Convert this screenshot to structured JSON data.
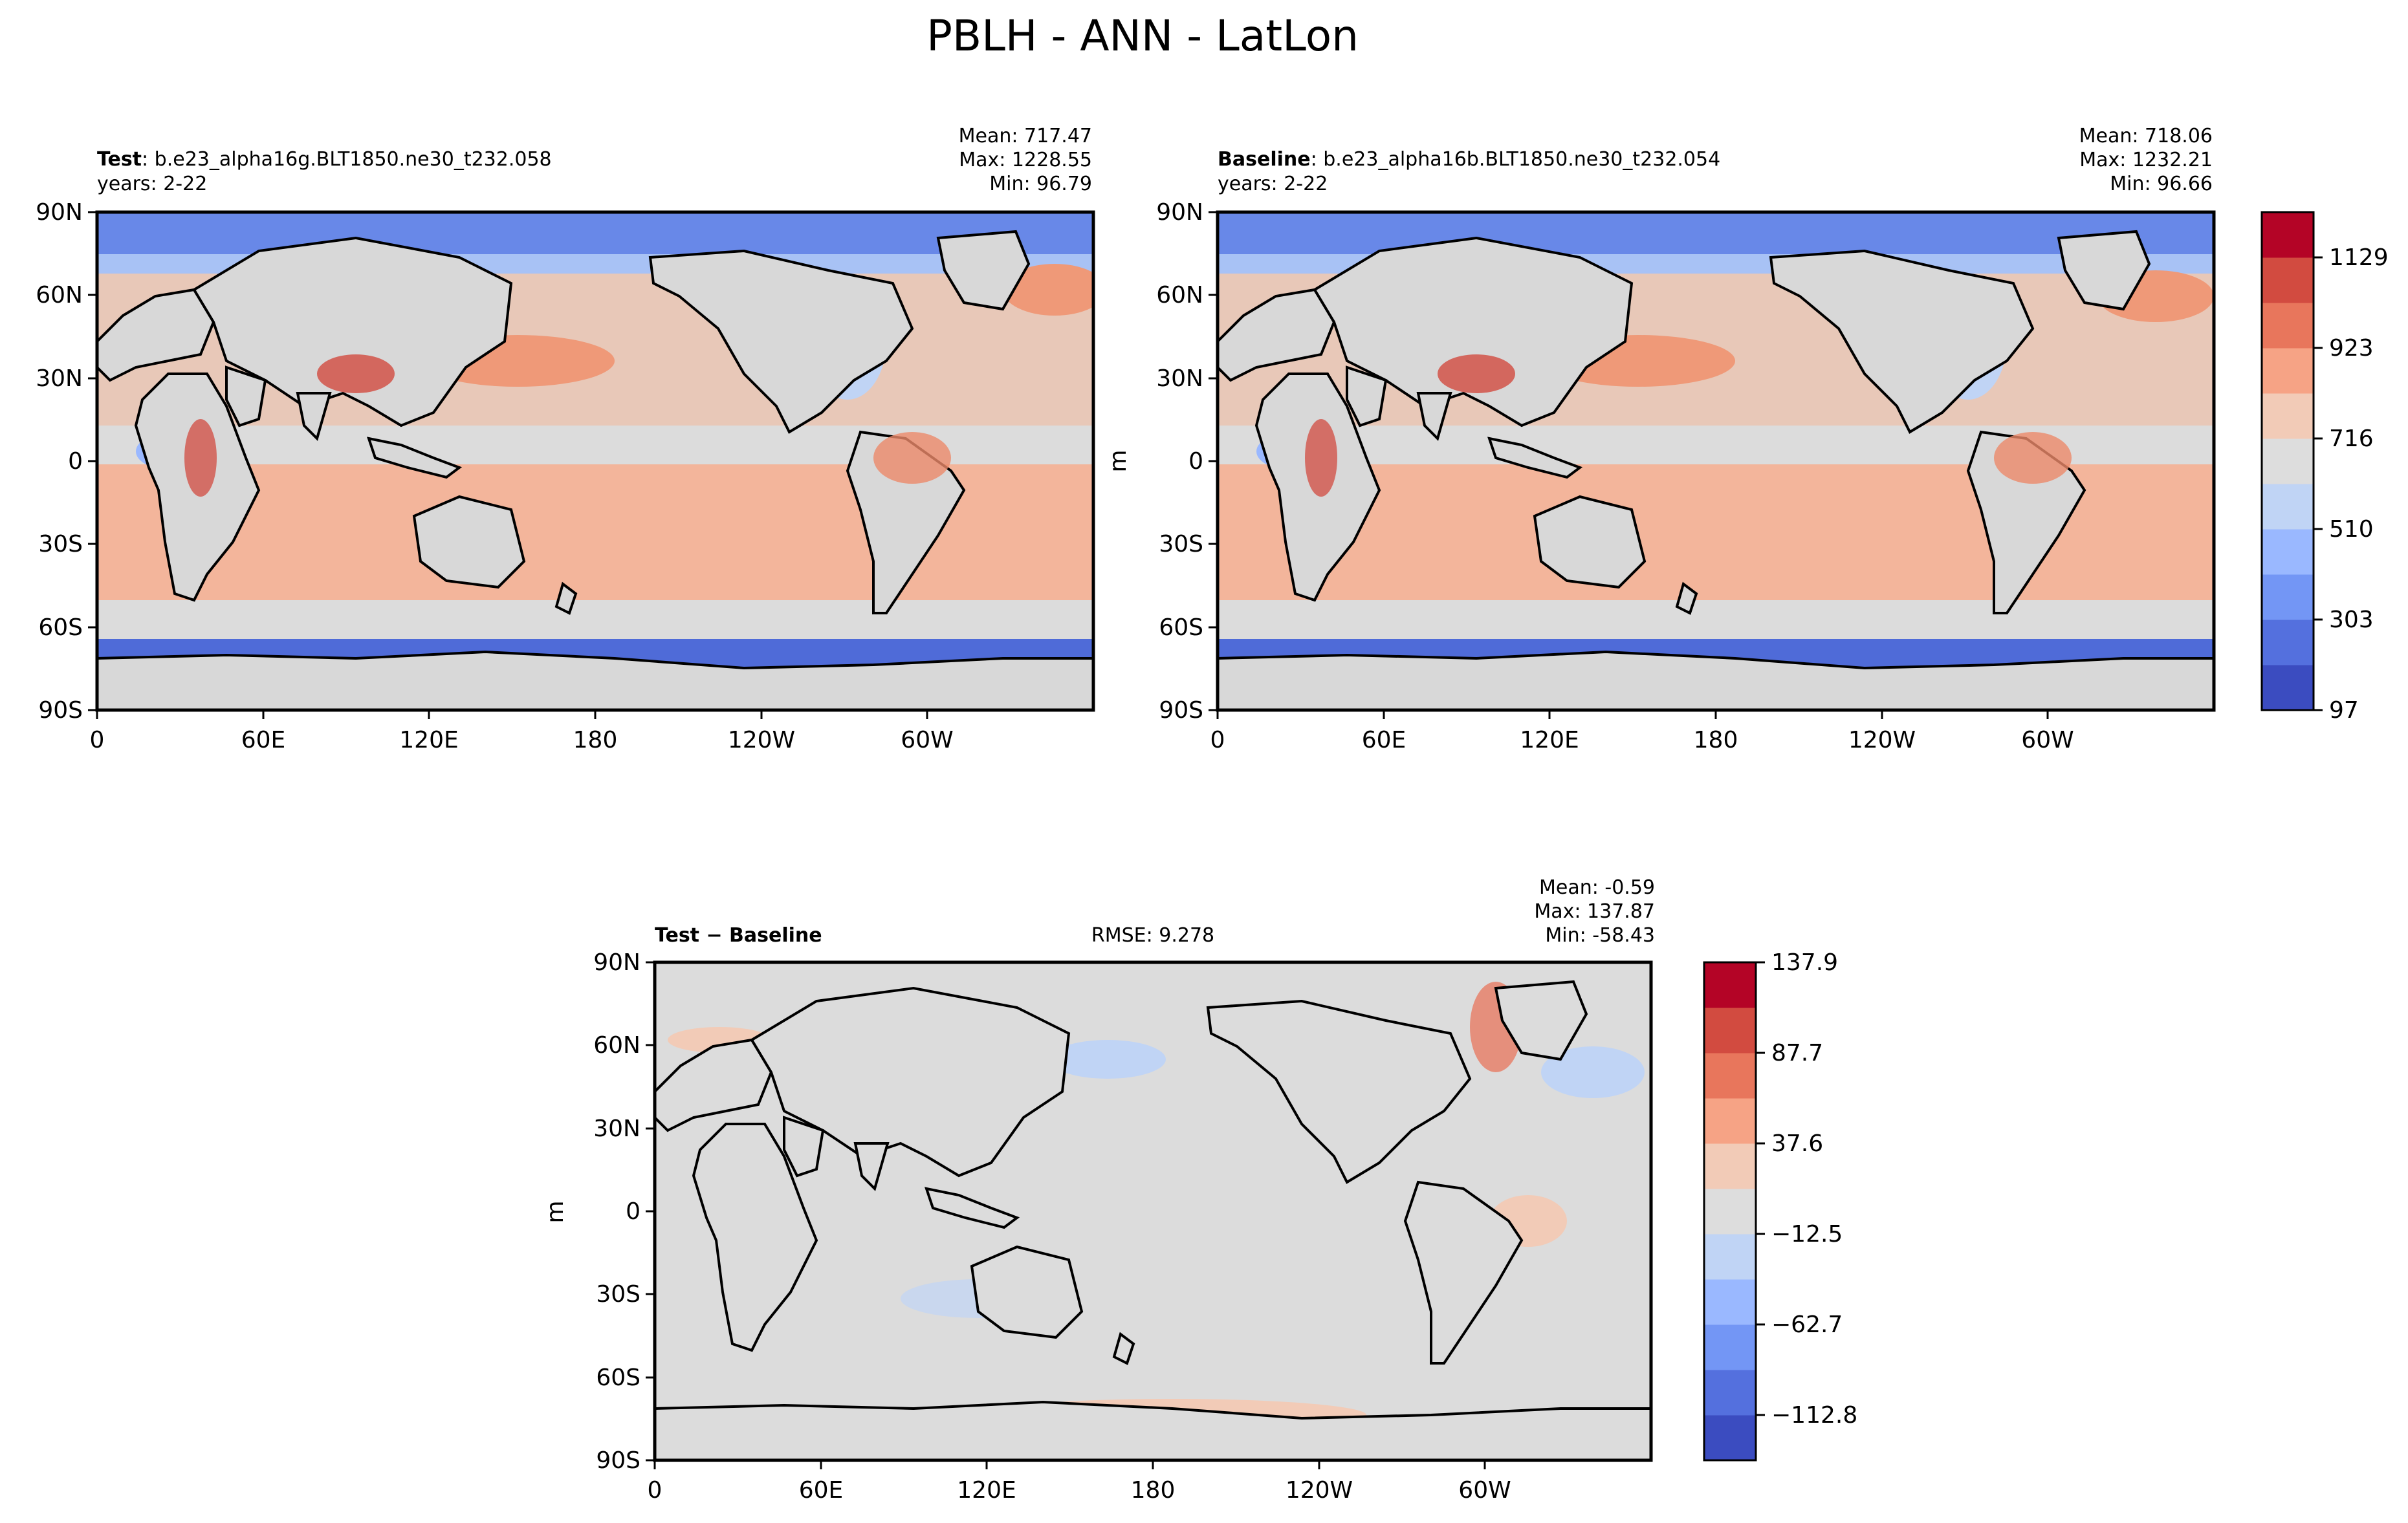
{
  "figure": {
    "title": "PBLH - ANN - LatLon"
  },
  "panels": [
    {
      "id": "test",
      "label_bold": "Test",
      "label_rest": ": b.e23_alpha16g.BLT1850.ne30_t232.058",
      "years": "years: 2-22",
      "stats": [
        "Mean: 717.47",
        "Max: 1228.55",
        "Min: 96.79"
      ],
      "ylabel": ""
    },
    {
      "id": "baseline",
      "label_bold": "Baseline",
      "label_rest": ": b.e23_alpha16b.BLT1850.ne30_t232.054",
      "years": "years: 2-22",
      "stats": [
        "Mean: 718.06",
        "Max: 1232.21",
        "Min: 96.66"
      ],
      "ylabel": "m"
    },
    {
      "id": "diff",
      "label_bold": "Test − Baseline",
      "label_rest": "",
      "rmse": "RMSE: 9.278",
      "stats": [
        "Mean: -0.59",
        "Max: 137.87",
        "Min: -58.43"
      ],
      "ylabel": "m"
    }
  ],
  "axes": {
    "yticks": [
      "90N",
      "60N",
      "30N",
      "0",
      "30S",
      "60S",
      "90S"
    ],
    "xticks": [
      "0",
      "60E",
      "120E",
      "180",
      "120W",
      "60W"
    ]
  },
  "colorbars": {
    "main": {
      "range": [
        97,
        1229
      ],
      "tick_labels": [
        "97",
        "303",
        "510",
        "716",
        "923",
        "1129"
      ],
      "colors": [
        "#3b4cc0",
        "#5470de",
        "#7396f5",
        "#9ab8ff",
        "#c0d4f5",
        "#dddddd",
        "#f2cbb7",
        "#f6a385",
        "#e8765c",
        "#d24b40",
        "#b40426"
      ]
    },
    "diff": {
      "range": [
        -137.9,
        137.9
      ],
      "tick_labels": [
        "137.9",
        "87.7",
        "37.6",
        "−12.5",
        "−62.7",
        "−112.8"
      ],
      "colors": [
        "#3b4cc0",
        "#5470de",
        "#7396f5",
        "#9ab8ff",
        "#c0d4f5",
        "#dddddd",
        "#f2cbb7",
        "#f6a385",
        "#e8765c",
        "#d24b40",
        "#b40426"
      ]
    }
  },
  "chart_data": [
    {
      "type": "heatmap",
      "title": "Test",
      "x": [
        "0",
        "60E",
        "120E",
        "180",
        "120W",
        "60W"
      ],
      "y": [
        "90N",
        "60N",
        "30N",
        "0",
        "30S",
        "60S",
        "90S"
      ],
      "zlim": [
        96.79,
        1228.55
      ],
      "mean": 717.47
    },
    {
      "type": "heatmap",
      "title": "Baseline",
      "x": [
        "0",
        "60E",
        "120E",
        "180",
        "120W",
        "60W"
      ],
      "y": [
        "90N",
        "60N",
        "30N",
        "0",
        "30S",
        "60S",
        "90S"
      ],
      "zlim": [
        96.66,
        1232.21
      ],
      "mean": 718.06
    },
    {
      "type": "heatmap",
      "title": "Test − Baseline",
      "x": [
        "0",
        "60E",
        "120E",
        "180",
        "120W",
        "60W"
      ],
      "y": [
        "90N",
        "60N",
        "30N",
        "0",
        "30S",
        "60S",
        "90S"
      ],
      "zlim": [
        -58.43,
        137.87
      ],
      "mean": -0.59,
      "rmse": 9.278
    }
  ]
}
